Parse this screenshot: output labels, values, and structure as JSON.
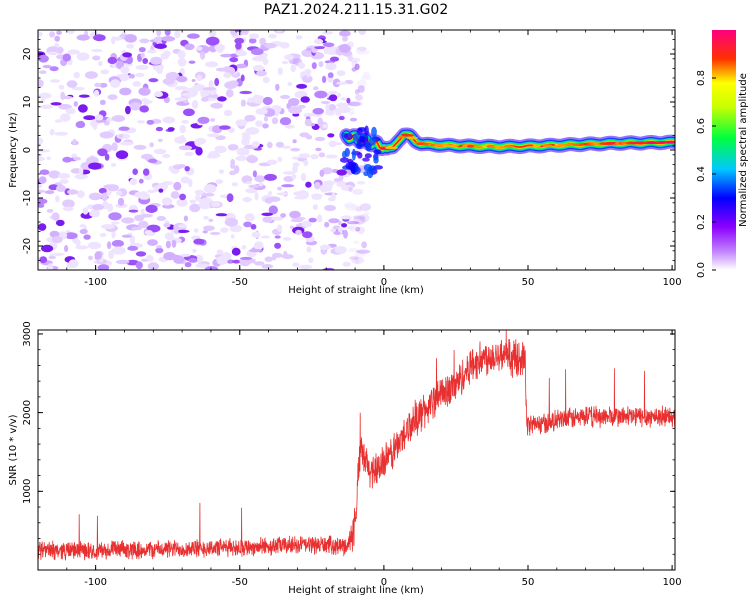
{
  "title": "PAZ1.2024.211.15.31.G02",
  "colors": {
    "snr_line": "#e83030",
    "frame": "#000000",
    "noise_speckle": "#7a1cf0"
  },
  "chart_data": [
    {
      "type": "heatmap",
      "name": "spectrogram",
      "xlabel": "Height of straight line (km)",
      "ylabel": "Frequency (Hz)",
      "xlim": [
        -120,
        101
      ],
      "ylim": [
        -25,
        25
      ],
      "xticks": [
        -100,
        -50,
        0,
        50,
        100
      ],
      "yticks": [
        -20,
        -10,
        0,
        10,
        20
      ],
      "colorbar": {
        "label": "Normalized spectral amplitude",
        "range": [
          0,
          1
        ],
        "ticks": [
          "0.0",
          "0.2",
          "0.4",
          "0.6",
          "0.8"
        ],
        "colormap": [
          "#ffffff",
          "#8a00ff",
          "#0000ff",
          "#00c8ff",
          "#00ff40",
          "#ffff00",
          "#ff3000",
          "#ff0080"
        ]
      },
      "noise_region_x": [
        -120,
        -12
      ],
      "signal_ridge": {
        "x": [
          -13,
          -10,
          -7,
          -4,
          -1,
          1,
          3,
          5,
          7,
          9,
          11,
          13,
          16,
          20,
          25,
          30,
          40,
          50,
          60,
          70,
          80,
          90,
          100
        ],
        "frequency_hz": [
          3,
          2.5,
          2,
          1.5,
          0.8,
          0.2,
          0.5,
          2,
          3.2,
          3,
          1.8,
          1.3,
          1.1,
          1,
          0.9,
          0.8,
          0.7,
          0.8,
          1,
          1.2,
          1.4,
          1.5,
          1.6
        ],
        "amplitude": [
          0.35,
          0.4,
          0.45,
          0.5,
          0.55,
          0.95,
          0.6,
          0.7,
          0.9,
          0.8,
          0.6,
          0.85,
          0.75,
          0.7,
          0.7,
          0.75,
          0.7,
          0.65,
          0.7,
          0.75,
          0.8,
          0.85,
          0.9
        ]
      }
    },
    {
      "type": "line",
      "name": "snr",
      "xlabel": "Height of straight line (km)",
      "ylabel": "SNR (10 * v/v)",
      "xlim": [
        -120,
        101
      ],
      "ylim": [
        0,
        3050
      ],
      "xticks": [
        -100,
        -50,
        0,
        50,
        100
      ],
      "yticks": [
        1000,
        2000,
        3000
      ],
      "trend": {
        "x": [
          -120,
          -100,
          -80,
          -60,
          -40,
          -30,
          -20,
          -13,
          -10,
          -9,
          -8,
          -5,
          0,
          5,
          10,
          15,
          20,
          25,
          30,
          35,
          40,
          45,
          49,
          49.5,
          55,
          60,
          70,
          80,
          90,
          100
        ],
        "y": [
          250,
          250,
          260,
          280,
          300,
          320,
          320,
          300,
          550,
          1200,
          1500,
          1250,
          1350,
          1600,
          1900,
          2050,
          2250,
          2350,
          2600,
          2700,
          2750,
          2700,
          2700,
          1850,
          1850,
          1900,
          1950,
          1950,
          1950,
          1950
        ]
      }
    }
  ]
}
